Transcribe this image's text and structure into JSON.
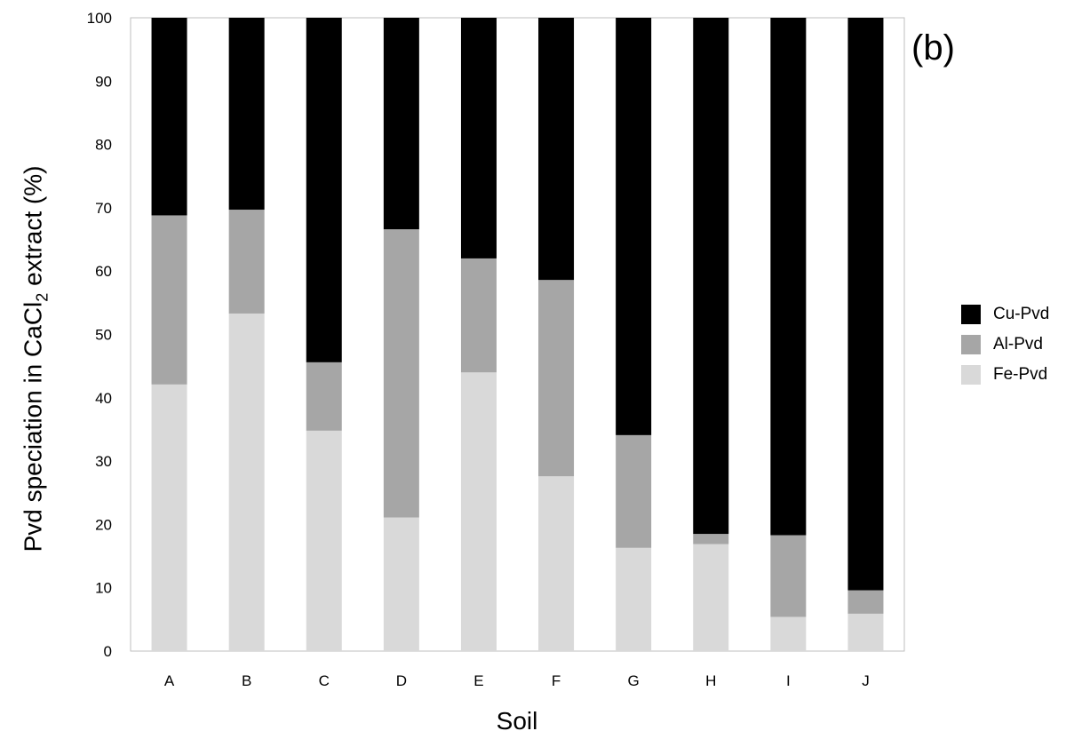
{
  "panel_label": "(b)",
  "chart_data": {
    "type": "bar",
    "stacked": true,
    "xlabel": "Soil",
    "ylabel_main": "Pvd speciation in CaCl",
    "ylabel_sub": "2",
    "ylabel_tail": " extract (%)",
    "ylim": [
      0,
      100
    ],
    "yticks": [
      0,
      10,
      20,
      30,
      40,
      50,
      60,
      70,
      80,
      90,
      100
    ],
    "grid": false,
    "legend_position": "right",
    "categories": [
      "A",
      "B",
      "C",
      "D",
      "E",
      "F",
      "G",
      "H",
      "I",
      "J"
    ],
    "series": [
      {
        "name": "Fe-Pvd",
        "color": "#d9d9d9",
        "values": [
          42.1,
          53.3,
          34.8,
          21.1,
          44.0,
          27.6,
          16.3,
          16.9,
          5.4,
          5.9
        ]
      },
      {
        "name": "Al-Pvd",
        "color": "#a6a6a6",
        "values": [
          26.7,
          16.4,
          10.8,
          45.5,
          18.0,
          31.0,
          17.8,
          1.6,
          12.9,
          3.7
        ]
      },
      {
        "name": "Cu-Pvd",
        "color": "#000000",
        "values": [
          31.2,
          30.3,
          54.4,
          33.4,
          38.0,
          41.4,
          65.9,
          81.5,
          81.7,
          90.4
        ]
      }
    ]
  }
}
